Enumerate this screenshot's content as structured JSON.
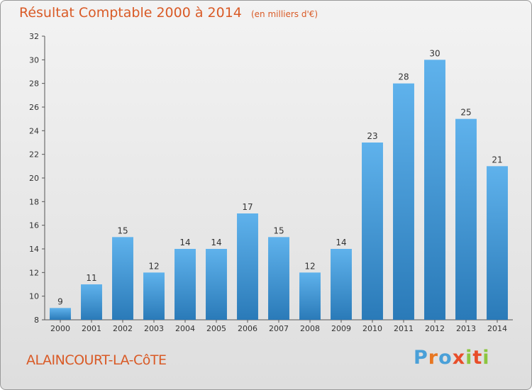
{
  "title": "Résultat Comptable 2000 à 2014",
  "subtitle": "(en milliers d'€)",
  "commune": "ALAINCOURT-LA-CôTE",
  "brand": {
    "letters": [
      "P",
      "r",
      "o",
      "x",
      "i",
      "t",
      "i"
    ],
    "colors": [
      "#4aa0d8",
      "#e87722",
      "#4aa0d8",
      "#e84e2a",
      "#8cc63f",
      "#e84e2a",
      "#8cc63f"
    ]
  },
  "colors": {
    "bar_top": "#5fb2ec",
    "bar_bottom": "#2a7ab8",
    "title": "#d95a26"
  },
  "chart_data": {
    "type": "bar",
    "title": "Résultat Comptable 2000 à 2014",
    "subtitle": "(en milliers d'€)",
    "categories": [
      "2000",
      "2001",
      "2002",
      "2003",
      "2004",
      "2005",
      "2006",
      "2007",
      "2008",
      "2009",
      "2010",
      "2011",
      "2012",
      "2013",
      "2014"
    ],
    "values": [
      9,
      11,
      15,
      12,
      14,
      14,
      17,
      15,
      12,
      14,
      23,
      28,
      30,
      25,
      21
    ],
    "ylim": [
      8,
      32
    ],
    "yticks": [
      8,
      10,
      12,
      14,
      16,
      18,
      20,
      22,
      24,
      26,
      28,
      30,
      32
    ],
    "grid": false,
    "legend": "none"
  }
}
